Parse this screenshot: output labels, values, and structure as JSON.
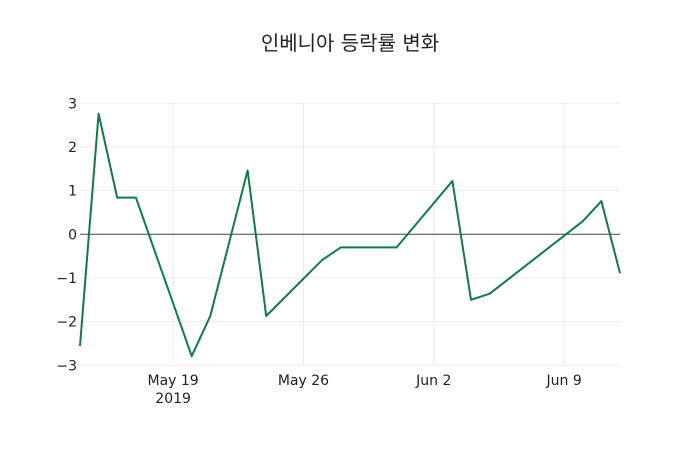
{
  "chart_data": {
    "type": "line",
    "title": "인베니아 등락률 변화",
    "xlabel": "",
    "ylabel": "",
    "x": [
      "2019-05-14",
      "2019-05-15",
      "2019-05-16",
      "2019-05-17",
      "2019-05-20",
      "2019-05-21",
      "2019-05-23",
      "2019-05-24",
      "2019-05-27",
      "2019-05-28",
      "2019-05-31",
      "2019-06-03",
      "2019-06-04",
      "2019-06-05",
      "2019-06-10",
      "2019-06-11",
      "2019-06-12"
    ],
    "series": [
      {
        "name": "등락률",
        "color": "#137a43",
        "values": [
          -2.56,
          2.76,
          0.84,
          0.84,
          -2.79,
          -1.87,
          1.46,
          -1.87,
          -0.59,
          -0.3,
          -0.3,
          1.22,
          -1.5,
          -1.36,
          0.3,
          0.76,
          -0.89
        ]
      }
    ],
    "xlim": [
      "2019-05-14",
      "2019-06-12"
    ],
    "ylim": [
      -3,
      3
    ],
    "yticks": [
      3,
      2,
      1,
      0,
      -1,
      -2,
      -3
    ],
    "ytick_labels": [
      "3",
      "2",
      "1",
      "0",
      "−1",
      "−2",
      "−3"
    ],
    "xticks": [
      {
        "date": "2019-05-19",
        "label": "May 19",
        "sublabel": "2019"
      },
      {
        "date": "2019-05-26",
        "label": "May 26"
      },
      {
        "date": "2019-06-02",
        "label": "Jun 2"
      },
      {
        "date": "2019-06-09",
        "label": "Jun 9"
      }
    ],
    "grid": true,
    "legend": "none"
  }
}
